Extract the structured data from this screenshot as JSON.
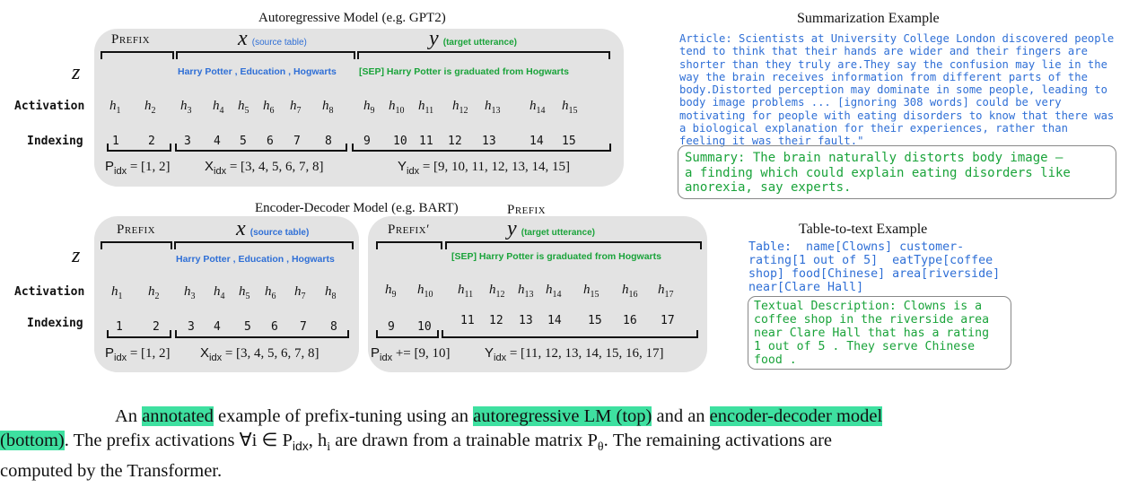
{
  "top": {
    "title": "Autoregressive Model  (e.g. GPT2)",
    "prefix_label": "Prefix",
    "x_label": "x",
    "x_sub": "(source table)",
    "y_label": "y",
    "y_sub": "(target utterance)",
    "z": "z",
    "source_tokens": "Harry  Potter , Education ,  Hogwarts",
    "target_tokens": "[SEP]  Harry Potter  is  graduated  from  Hogwarts",
    "activation_label": "Activation",
    "indexing_label": "Indexing",
    "h_subs": [
      "1",
      "2",
      "3",
      "4",
      "5",
      "6",
      "7",
      "8",
      "9",
      "10",
      "11",
      "12",
      "13",
      "14",
      "15"
    ],
    "indices": [
      "1",
      "2",
      "3",
      "4",
      "5",
      "6",
      "7",
      "8",
      "9",
      "10",
      "11",
      "12",
      "13",
      "14",
      "15"
    ],
    "p_set": "[1, 2]",
    "x_set": "[3, 4, 5, 6, 7, 8]",
    "y_set": "[9, 10, 11, 12, 13, 14, 15]"
  },
  "bottom": {
    "title": "Encoder-Decoder Model  (e.g. BART)",
    "prefix_label_top": "Prefix",
    "prefix_label": "Prefix",
    "prefix2_label": "Prefix′",
    "x_label": "x",
    "x_sub": "(source table)",
    "y_label": "y",
    "y_sub": "(target utterance)",
    "z": "z",
    "source_tokens": "Harry  Potter , Education ,  Hogwarts",
    "target_tokens": "[SEP]  Harry Potter  is  graduated  from  Hogwarts",
    "activation_label": "Activation",
    "indexing_label": "Indexing",
    "enc_h_subs": [
      "1",
      "2",
      "3",
      "4",
      "5",
      "6",
      "7",
      "8"
    ],
    "dec_h_subs": [
      "9",
      "10",
      "11",
      "12",
      "13",
      "14",
      "15",
      "16",
      "17"
    ],
    "enc_indices": [
      "1",
      "2",
      "3",
      "4",
      "5",
      "6",
      "7",
      "8"
    ],
    "dec_indices": [
      "9",
      "10",
      "11",
      "12",
      "13",
      "14",
      "15",
      "16",
      "17"
    ],
    "p_set": "[1, 2]",
    "x_set": "[3, 4, 5, 6, 7, 8]",
    "p_add": "+= [9, 10]",
    "y_set": "[11, 12, 13, 14, 15, 16, 17]"
  },
  "summarization": {
    "title": "Summarization Example",
    "article": "Article: Scientists at University College London discovered people\ntend to think that their hands are wider and their fingers are\nshorter than they truly are.They say the confusion may lie in the\nway the brain receives information from different parts of the\nbody.Distorted perception may dominate in some people, leading to\nbody image problems ... [ignoring 308 words] could be very\nmotivating for people with eating disorders to know that there was\na biological explanation for their experiences, rather than\nfeeling it was their fault.\"",
    "summary": "Summary: The brain naturally distorts body image –\na finding which could explain eating disorders like\nanorexia, say experts."
  },
  "table_to_text": {
    "title": "Table-to-text Example",
    "table": "Table:  name[Clowns] customer-\nrating[1 out of 5]  eatType[coffee\nshop] food[Chinese] area[riverside]\nnear[Clare Hall]",
    "description": "Textual Description: Clowns is a\ncoffee shop in the riverside area\nnear Clare Hall that has a rating\n1 out of 5 . They serve Chinese\nfood ."
  },
  "caption": {
    "intro": "An ",
    "hl1": "annotated",
    "t1": " example of prefix-tuning using an ",
    "hl2": "autoregressive LM (top)",
    "t2": " and an ",
    "hl3": "encoder-decoder model",
    "hl4": "(bottom)",
    "t3": ". The prefix activations ∀i ∈ P",
    "t3sub": "idx",
    "t4": ", h",
    "t4sub": "i",
    "t5": " are drawn from a trainable matrix P",
    "t5sub": "θ",
    "t6": ". The remaining activations are",
    "t7": "computed by the Transformer."
  },
  "colors": {
    "panel": "#e3e3e3",
    "source_blue": "#2f6fd6",
    "target_green": "#1aa33a",
    "highlight": "#3ee0a0"
  }
}
